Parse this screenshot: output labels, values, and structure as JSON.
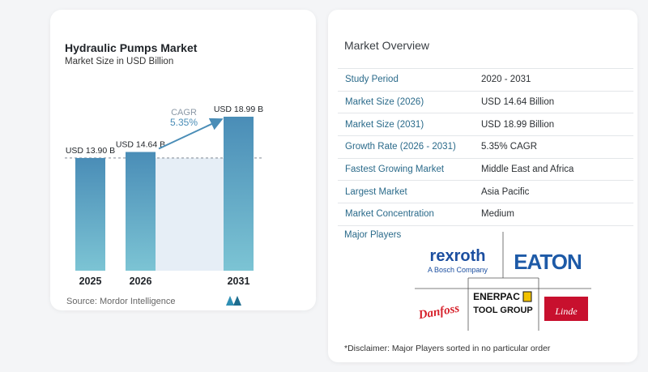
{
  "left": {
    "title": "Hydraulic Pumps Market",
    "subtitle": "Market Size in USD Billion",
    "source": "Source:  Mordor Intelligence"
  },
  "chart_data": {
    "type": "bar",
    "categories": [
      "2025",
      "2026",
      "2031"
    ],
    "values": [
      13.9,
      14.64,
      18.99
    ],
    "value_labels": [
      "USD 13.90 B",
      "USD 14.64 B",
      "USD 18.99 B"
    ],
    "annotation": {
      "label": "CAGR",
      "value": "5.35%"
    },
    "bar_color_top": "#4a8db7",
    "bar_color_bottom": "#7cc4d4",
    "shaded_color": "#e6eef6"
  },
  "overview": {
    "title": "Market Overview",
    "rows": [
      {
        "key": "Study Period",
        "value": "2020 - 2031"
      },
      {
        "key": "Market Size (2026)",
        "value": "USD 14.64 Billion"
      },
      {
        "key": "Market Size (2031)",
        "value": "USD 18.99 Billion"
      },
      {
        "key": "Growth Rate (2026 - 2031)",
        "value": "5.35% CAGR"
      },
      {
        "key": "Fastest Growing Market",
        "value": "Middle East and Africa"
      },
      {
        "key": "Largest Market",
        "value": "Asia Pacific"
      },
      {
        "key": "Market Concentration",
        "value": "Medium"
      }
    ],
    "players_label": "Major Players",
    "logos": {
      "rexroth_main": "rexroth",
      "rexroth_sub": "A Bosch Company",
      "eaton": "EATON",
      "enerpac_main": "ENERPAC",
      "enerpac_sub": "TOOL GROUP",
      "danfoss": "Danfoss",
      "linde": "Linde"
    },
    "disclaimer": "*Disclaimer: Major Players sorted in no particular order"
  }
}
